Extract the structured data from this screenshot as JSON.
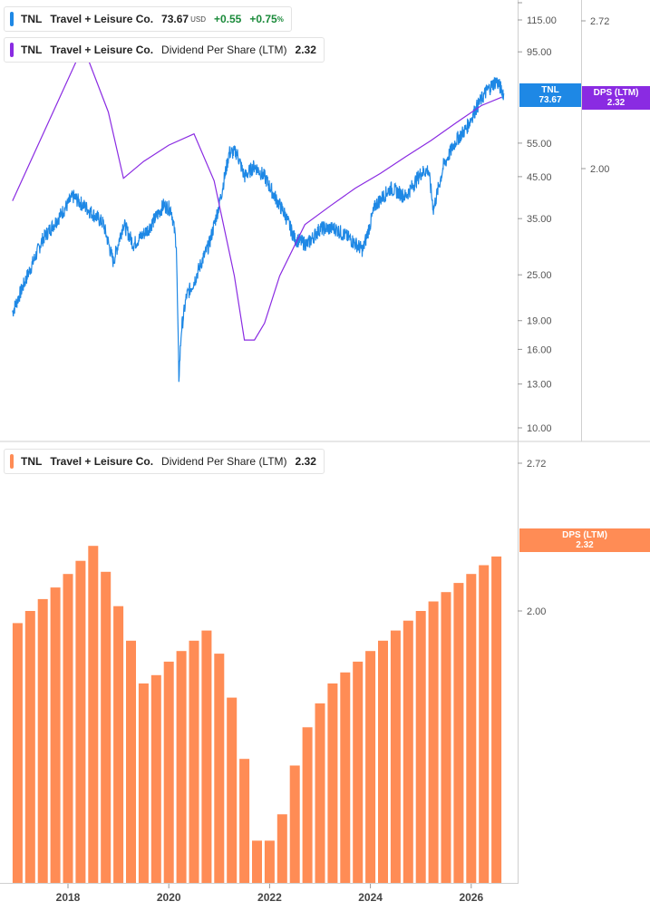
{
  "legends": {
    "price": {
      "ticker": "TNL",
      "company": "Travel + Leisure Co.",
      "value": "73.67",
      "currency": "USD",
      "change": "+0.55",
      "change_pct": "+0.75",
      "pct_sign": "%"
    },
    "dps_top": {
      "ticker": "TNL",
      "company": "Travel + Leisure Co.",
      "metric": "Dividend Per Share (LTM)",
      "value": "2.32"
    },
    "dps_bottom": {
      "ticker": "TNL",
      "company": "Travel + Leisure Co.",
      "metric": "Dividend Per Share (LTM)",
      "value": "2.32"
    }
  },
  "tags": {
    "price": {
      "label": "TNL",
      "value": "73.67"
    },
    "dps_top": {
      "label": "DPS (LTM)",
      "value": "2.32"
    },
    "dps_bottom": {
      "label": "DPS (LTM)",
      "value": "2.32"
    }
  },
  "colors": {
    "price": "#1e88e5",
    "dps_line": "#8a2be2",
    "bar": "#ff8c55",
    "tag_price": "#1e88e5",
    "tag_dps_top": "#8a2be2",
    "tag_dps_bottom": "#ff8c55"
  },
  "chart_data": [
    {
      "type": "line",
      "scale": "log",
      "x_ticks": [
        "2018",
        "2020",
        "2022",
        "2024",
        "2026"
      ],
      "y_ticks_price": [
        "115.00",
        "95.00",
        "55.00",
        "45.00",
        "35.00",
        "25.00",
        "19.00",
        "16.00",
        "13.00",
        "10.00"
      ],
      "y_ticks_dps": [
        "2.72",
        "2.00"
      ],
      "series": [
        {
          "axis": "price",
          "x": [
            2016.9,
            2017.2,
            2017.5,
            2017.8,
            2018.1,
            2018.4,
            2018.7,
            2018.9,
            2019.1,
            2019.3,
            2019.6,
            2019.9,
            2020.05,
            2020.15,
            2020.2,
            2020.25,
            2020.35,
            2020.5,
            2020.65,
            2020.8,
            2021.0,
            2021.2,
            2021.35,
            2021.5,
            2021.7,
            2021.9,
            2022.1,
            2022.3,
            2022.5,
            2022.75,
            2023.0,
            2023.3,
            2023.6,
            2023.85,
            2024.1,
            2024.4,
            2024.7,
            2025.0,
            2025.15,
            2025.25,
            2025.45,
            2025.7,
            2025.9,
            2026.1,
            2026.3,
            2026.5,
            2026.65
          ],
          "y": [
            20,
            25,
            31,
            35,
            40,
            37,
            34,
            27,
            34,
            30,
            33,
            38,
            37,
            30,
            13.5,
            18,
            22,
            24,
            27,
            30,
            38,
            52,
            52,
            45,
            48,
            45,
            40,
            36,
            31,
            30,
            33,
            33,
            31,
            29,
            38,
            42,
            40,
            46,
            47,
            37,
            48,
            56,
            60,
            68,
            75,
            80,
            73.67
          ]
        },
        {
          "axis": "dps",
          "x": [
            2016.9,
            2018.3,
            2018.8,
            2019.1,
            2019.5,
            2020.0,
            2020.5,
            2020.9,
            2021.3,
            2021.5,
            2021.7,
            2021.9,
            2022.2,
            2022.7,
            2023.2,
            2023.7,
            2024.2,
            2024.7,
            2025.2,
            2025.7,
            2026.2,
            2026.6
          ],
          "y": [
            1.87,
            2.58,
            2.25,
            1.96,
            2.03,
            2.1,
            2.15,
            1.95,
            1.6,
            1.4,
            1.4,
            1.45,
            1.6,
            1.78,
            1.85,
            1.92,
            1.98,
            2.05,
            2.12,
            2.2,
            2.28,
            2.32
          ]
        }
      ]
    },
    {
      "type": "bar",
      "y_ticks": [
        "2.72",
        "2.00"
      ],
      "x_ticks": [
        "2018",
        "2020",
        "2022",
        "2024",
        "2026"
      ],
      "x": [
        2017.0,
        2017.25,
        2017.5,
        2017.75,
        2018.0,
        2018.25,
        2018.5,
        2018.75,
        2019.0,
        2019.25,
        2019.5,
        2019.75,
        2020.0,
        2020.25,
        2020.5,
        2020.75,
        2021.0,
        2021.25,
        2021.5,
        2021.75,
        2022.0,
        2022.25,
        2022.5,
        2022.75,
        2023.0,
        2023.25,
        2023.5,
        2023.75,
        2024.0,
        2024.25,
        2024.5,
        2024.75,
        2025.0,
        2025.25,
        2025.5,
        2025.75,
        2026.0,
        2026.25,
        2026.5
      ],
      "values": [
        1.95,
        2.0,
        2.05,
        2.1,
        2.16,
        2.22,
        2.29,
        2.17,
        2.02,
        1.88,
        1.72,
        1.75,
        1.8,
        1.84,
        1.88,
        1.92,
        1.83,
        1.67,
        1.47,
        1.24,
        1.24,
        1.31,
        1.45,
        1.57,
        1.65,
        1.72,
        1.76,
        1.8,
        1.84,
        1.88,
        1.92,
        1.96,
        2.0,
        2.04,
        2.08,
        2.12,
        2.16,
        2.2,
        2.24
      ]
    }
  ]
}
